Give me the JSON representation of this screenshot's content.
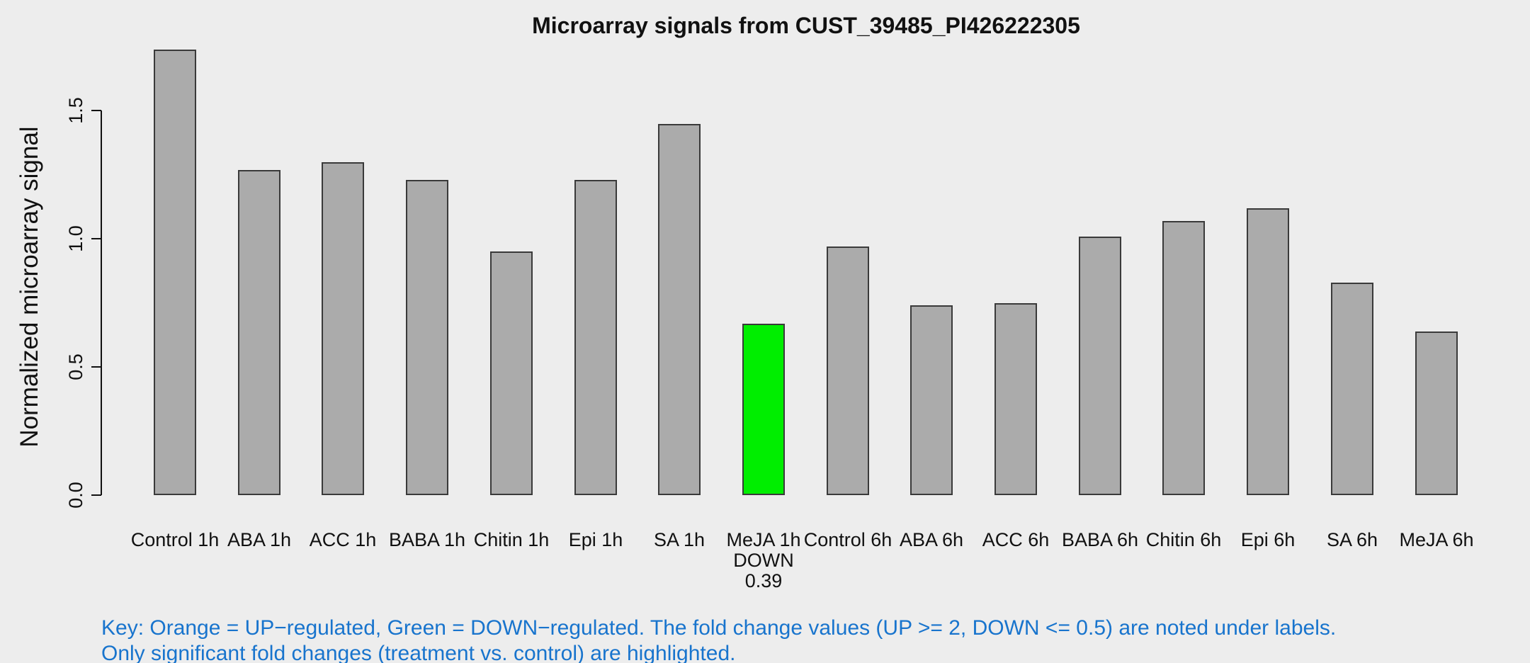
{
  "title": "Microarray signals from CUST_39485_PI426222305",
  "key": {
    "line1": "Key: Orange = UP−regulated, Green = DOWN−regulated. The fold change values (UP >= 2, DOWN <= 0.5) are noted under labels.",
    "line2": "Only significant fold changes (treatment vs. control) are highlighted."
  },
  "colors": {
    "background": "#EDEDED",
    "bar_fill": "#ABABAB",
    "bar_border": "#3A3A3A",
    "down_regulated_green": "#00EE00",
    "key_text": "#1874CD",
    "axis_text": "#111111"
  },
  "chart_data": {
    "type": "bar",
    "title": "Microarray signals from CUST_39485_PI426222305",
    "xlabel": "",
    "ylabel": "Normalized microarray signal",
    "ylim": [
      0,
      1.5
    ],
    "yticks": [
      0,
      0.5,
      1,
      1.5
    ],
    "grid": false,
    "legend_position": "none",
    "categories": [
      "Control 1h",
      "ABA 1h",
      "ACC 1h",
      "BABA 1h",
      "Chitin 1h",
      "Epi 1h",
      "SA 1h",
      "MeJA 1h",
      "Control 6h",
      "ABA 6h",
      "ACC 6h",
      "BABA 6h",
      "Chitin 6h",
      "Epi 6h",
      "SA 6h",
      "MeJA 6h"
    ],
    "values": [
      1.74,
      1.27,
      1.3,
      1.23,
      0.95,
      1.23,
      1.45,
      0.67,
      0.97,
      0.74,
      0.75,
      1.01,
      1.07,
      1.12,
      0.83,
      0.64
    ],
    "highlighted_bars": [
      {
        "index": 7,
        "category": "MeJA 1h",
        "direction": "DOWN",
        "fold_change": "0.39",
        "color": "#00EE00"
      }
    ]
  }
}
